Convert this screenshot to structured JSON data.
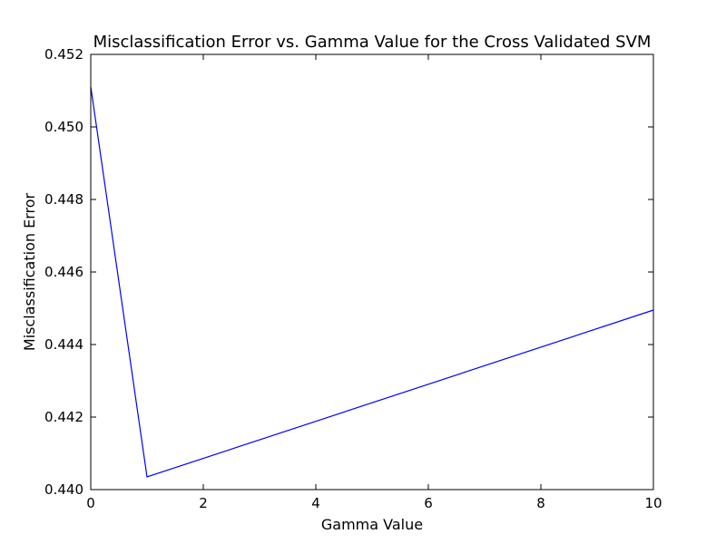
{
  "chart_data": {
    "type": "line",
    "title": "Misclassification Error vs. Gamma Value for the Cross Validated SVM",
    "xlabel": "Gamma Value",
    "ylabel": "Misclassification Error",
    "xlim": [
      0,
      10
    ],
    "ylim": [
      0.44,
      0.452
    ],
    "xticks": [
      "0",
      "2",
      "4",
      "6",
      "8",
      "10"
    ],
    "yticks": [
      "0.440",
      "0.442",
      "0.444",
      "0.446",
      "0.448",
      "0.450",
      "0.452"
    ],
    "grid": false,
    "series": [
      {
        "color": "#0000ff",
        "x": [
          0.001,
          1,
          10
        ],
        "y": [
          0.4511,
          0.44035,
          0.44495
        ]
      }
    ]
  }
}
